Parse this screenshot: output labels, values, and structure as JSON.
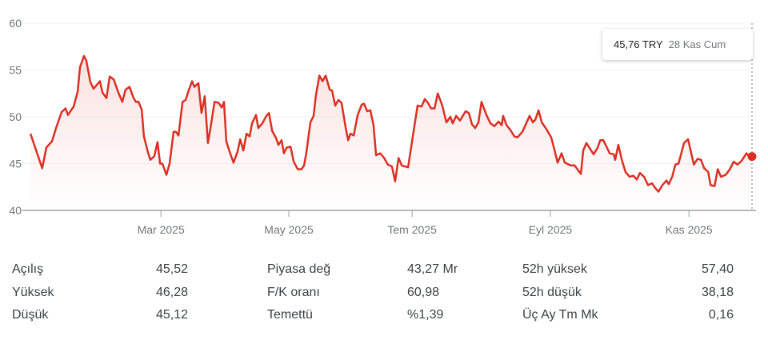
{
  "chart_data": {
    "type": "line",
    "title": "",
    "xlabel": "",
    "ylabel": "",
    "ylim": [
      40,
      60
    ],
    "xlim": [
      0,
      250.8
    ],
    "yticks": [
      40,
      45,
      50,
      55,
      60
    ],
    "ytick_labels": [
      "40",
      "45",
      "50",
      "55",
      "60"
    ],
    "xticks": [
      {
        "pos": 45.6,
        "label": "Mar 2025"
      },
      {
        "pos": 90,
        "label": "May 2025"
      },
      {
        "pos": 132.8,
        "label": "Tem 2025"
      },
      {
        "pos": 180.8,
        "label": "Eyl 2025"
      },
      {
        "pos": 228.9,
        "label": "Kas 2025"
      }
    ],
    "grid": true,
    "line_color": "#d93025",
    "x": [
      0.3,
      4.4,
      5.8,
      7.8,
      9.2,
      11.1,
      12.5,
      13.3,
      15.3,
      16.7,
      17.5,
      18.9,
      19.7,
      21.1,
      22.2,
      24.4,
      25.3,
      26.7,
      27.8,
      29.2,
      30.8,
      32.2,
      33.3,
      34.7,
      36.1,
      36.9,
      37.8,
      38.9,
      39.7,
      41.1,
      41.9,
      43.3,
      44.4,
      45.3,
      46.1,
      47.5,
      48.6,
      50,
      50.8,
      51.7,
      53.1,
      54.2,
      55,
      56.4,
      57.2,
      58.6,
      59.7,
      60.8,
      61.9,
      62.8,
      64.2,
      65.6,
      66.7,
      67.5,
      68.3,
      69.4,
      70.8,
      72.2,
      73.1,
      74.2,
      75.3,
      76.4,
      77.2,
      78.6,
      79.4,
      80.8,
      82.2,
      83.1,
      84.2,
      85.6,
      86.4,
      87.5,
      88.3,
      89.2,
      90.6,
      91.7,
      93.1,
      94.4,
      95.3,
      96.1,
      97.5,
      98.6,
      99.4,
      100.6,
      101.7,
      102.8,
      104.2,
      105,
      106.1,
      107.2,
      108.3,
      109.7,
      110.6,
      111.4,
      112.5,
      113.9,
      115.3,
      116.1,
      117.2,
      118.3,
      119.4,
      120.3,
      121.7,
      123.1,
      124.4,
      125.8,
      126.9,
      128.1,
      129.2,
      131.4,
      133.3,
      134.7,
      136.1,
      137.2,
      138.3,
      139.4,
      140.6,
      141.7,
      143.3,
      144.7,
      146.1,
      146.9,
      148.1,
      149.4,
      151.4,
      152.5,
      153.6,
      154.7,
      155.8,
      156.9,
      158.6,
      160,
      161.4,
      162.8,
      163.9,
      164.4,
      165.6,
      166.9,
      168.3,
      169.4,
      171.1,
      173.6,
      174.7,
      175.6,
      176.7,
      177.8,
      179.4,
      181.1,
      182.2,
      183.3,
      184.7,
      185.8,
      187.8,
      189.2,
      191.4,
      192.2,
      193.3,
      195.8,
      197.2,
      198.1,
      199.2,
      201.4,
      202.8,
      203.3,
      204.4,
      205.6,
      206.9,
      208.3,
      209.7,
      210.8,
      211.9,
      213.3,
      214.7,
      216.1,
      217.2,
      218.3,
      219.7,
      221.1,
      221.9,
      223.1,
      224.2,
      225.3,
      227.2,
      228.6,
      230.6,
      231.9,
      233.1,
      234.2,
      235.6,
      236.4,
      237.8,
      238.9,
      240,
      241.7,
      243.1,
      244.4,
      245.8,
      247.2,
      248.9,
      249.7,
      250.8
    ],
    "y": [
      48.2,
      44.5,
      46.7,
      47.4,
      48.8,
      50.5,
      50.9,
      50.2,
      51.1,
      52.7,
      55.3,
      56.5,
      56,
      53.7,
      53,
      53.8,
      52.6,
      52,
      54.3,
      54,
      52.6,
      51.6,
      52.9,
      53.2,
      52,
      51.6,
      51.6,
      50.8,
      47.9,
      46.2,
      45.4,
      45.8,
      47.3,
      45,
      45,
      43.8,
      45,
      48.4,
      48.4,
      48,
      51.6,
      51.8,
      52.6,
      53.8,
      53.2,
      53.6,
      50.4,
      52.2,
      47.2,
      48.8,
      51.6,
      51.5,
      51,
      51.6,
      47.4,
      46.3,
      45.1,
      46.3,
      47.6,
      46.4,
      48.2,
      47.9,
      49.3,
      50.2,
      48.8,
      49.3,
      50.1,
      50.4,
      48.5,
      47.7,
      47,
      47.5,
      46.1,
      46.7,
      46.8,
      45.2,
      44.4,
      44.4,
      44.8,
      46.2,
      49.4,
      50.1,
      52.3,
      54.4,
      53.8,
      54.4,
      52.9,
      52.8,
      51.2,
      51.8,
      51.5,
      48.9,
      47.5,
      48.2,
      48,
      50.2,
      51.3,
      51.4,
      50.6,
      50.7,
      49.1,
      45.9,
      46.1,
      45.6,
      44.9,
      44.7,
      43.1,
      45.6,
      44.8,
      44.6,
      48.4,
      51.2,
      51.1,
      51.9,
      51.5,
      50.9,
      50.9,
      52.5,
      51.2,
      49.4,
      50,
      49.3,
      50.1,
      49.6,
      50.6,
      50.4,
      49.2,
      48.8,
      49.4,
      51.6,
      50.2,
      49.3,
      49,
      49.5,
      49.1,
      50.1,
      49.1,
      48.6,
      47.9,
      47.8,
      48.4,
      50.1,
      49.4,
      49.7,
      50.7,
      49.4,
      48.7,
      47.8,
      46.5,
      45.1,
      46.1,
      45.1,
      44.8,
      44.8,
      43.9,
      46.4,
      47.2,
      46,
      46.7,
      47.5,
      47.5,
      46.1,
      46,
      45.4,
      47,
      45.4,
      44.1,
      43.6,
      43.7,
      43.3,
      44,
      43.6,
      42.7,
      42.9,
      42.4,
      42,
      42.7,
      43.2,
      42.8,
      43.6,
      44.9,
      45,
      47.2,
      47.6,
      44.9,
      45.5,
      45.4,
      44.5,
      44.1,
      42.7,
      42.6,
      44.4,
      43.6,
      43.8,
      44.4,
      45.2,
      44.9,
      45.3,
      46.1,
      45.8,
      45.76
    ],
    "tooltip": {
      "price": "45,76 TRY",
      "date": "28 Kas Cum"
    }
  },
  "stats": [
    {
      "label": "Açılış",
      "value": "45,52"
    },
    {
      "label": "Yüksek",
      "value": "46,28"
    },
    {
      "label": "Düşük",
      "value": "45,12"
    },
    {
      "label": "Piyasa değ",
      "value": "43,27 Mr"
    },
    {
      "label": "F/K oranı",
      "value": "60,98"
    },
    {
      "label": "Temettü",
      "value": "%1,39"
    },
    {
      "label": "52h yüksek",
      "value": "57,40"
    },
    {
      "label": "52h düşük",
      "value": "38,18"
    },
    {
      "label": "Üç Ay Tm Mk",
      "value": "0,16"
    }
  ]
}
